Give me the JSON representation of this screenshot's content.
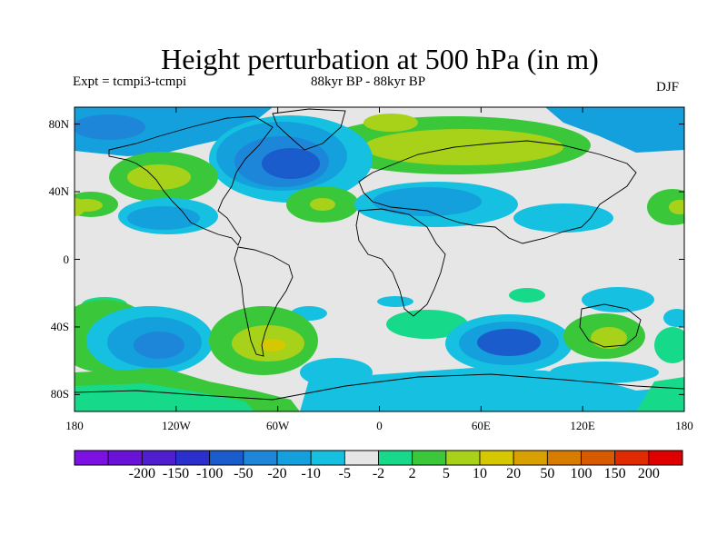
{
  "header": {
    "title": "Height perturbation at 500 hPa (in m)",
    "expt": "Expt = tcmpi3-tcmpi",
    "period": "88kyr BP - 88kyr BP",
    "season": "DJF"
  },
  "map": {
    "lat_ticks": [
      {
        "value": 80,
        "label": "80N"
      },
      {
        "value": 40,
        "label": "40N"
      },
      {
        "value": 0,
        "label": "0"
      },
      {
        "value": -40,
        "label": "40S"
      },
      {
        "value": -80,
        "label": "80S"
      }
    ],
    "lon_ticks": [
      {
        "value": -180,
        "label": "180"
      },
      {
        "value": -120,
        "label": "120W"
      },
      {
        "value": -60,
        "label": "60W"
      },
      {
        "value": 0,
        "label": "0"
      },
      {
        "value": 60,
        "label": "60E"
      },
      {
        "value": 120,
        "label": "120E"
      },
      {
        "value": 180,
        "label": "180"
      }
    ]
  },
  "colorbar": {
    "colors": [
      "#7d10e3",
      "#6a12d8",
      "#4f1fcf",
      "#2b2fcc",
      "#1a5ccc",
      "#1d86d9",
      "#14a0dc",
      "#16c0e0",
      "#e6e6e6",
      "#16d98a",
      "#3ac83a",
      "#a8d21a",
      "#d6c800",
      "#d8a000",
      "#d87c00",
      "#d85a00",
      "#e02a00",
      "#e00000"
    ],
    "labels": [
      "-200",
      "-150",
      "-100",
      "-50",
      "-20",
      "-10",
      "-5",
      "-2",
      "2",
      "5",
      "10",
      "20",
      "50",
      "100",
      "150",
      "200"
    ]
  }
}
